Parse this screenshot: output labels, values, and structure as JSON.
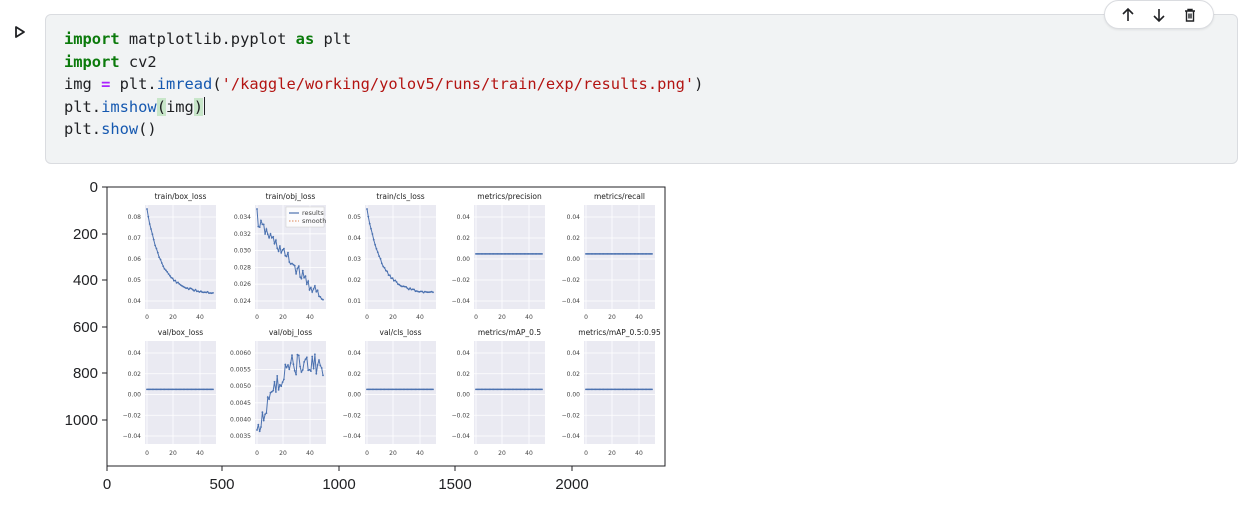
{
  "toolbar": {
    "icons": [
      "arrow-up-icon",
      "arrow-down-icon",
      "trash-icon"
    ]
  },
  "code_cell": {
    "lines": [
      [
        {
          "t": "import",
          "c": "kw"
        },
        {
          "t": " matplotlib.pyplot ",
          "c": ""
        },
        {
          "t": "as",
          "c": "kw"
        },
        {
          "t": " plt",
          "c": ""
        }
      ],
      [
        {
          "t": "import",
          "c": "kw"
        },
        {
          "t": " cv2",
          "c": ""
        }
      ],
      [
        {
          "t": "img ",
          "c": ""
        },
        {
          "t": "=",
          "c": "op"
        },
        {
          "t": " plt.",
          "c": ""
        },
        {
          "t": "imread",
          "c": "fn"
        },
        {
          "t": "(",
          "c": ""
        },
        {
          "t": "'/kaggle/working/yolov5/runs/train/exp/results.png'",
          "c": "str"
        },
        {
          "t": ")",
          "c": ""
        }
      ],
      [
        {
          "t": "plt.",
          "c": ""
        },
        {
          "t": "imshow",
          "c": "fn"
        },
        {
          "t": "(",
          "c": "paren-hl"
        },
        {
          "t": "img",
          "c": ""
        },
        {
          "t": ")",
          "c": "paren-hl"
        },
        {
          "t": "",
          "c": "cursor"
        }
      ],
      [
        {
          "t": "plt.",
          "c": ""
        },
        {
          "t": "show",
          "c": "fn"
        },
        {
          "t": "()",
          "c": ""
        }
      ]
    ]
  },
  "output": {
    "y_ticks": [
      "0",
      "200",
      "400",
      "600",
      "800",
      "1000"
    ],
    "x_ticks": [
      "0",
      "500",
      "1000",
      "1500",
      "2000"
    ],
    "colors": {
      "line": "#4c72b0",
      "panel_bg": "#eaeaf2",
      "smooth": "#dd8452"
    },
    "legend": [
      "results",
      "smooth"
    ],
    "panels": [
      {
        "title": "train/box_loss",
        "yticks": [
          "0.08",
          "0.07",
          "0.06",
          "0.05",
          "0.04"
        ],
        "kind": "decay"
      },
      {
        "title": "train/obj_loss",
        "yticks": [
          "0.034",
          "0.032",
          "0.030",
          "0.028",
          "0.026",
          "0.024"
        ],
        "kind": "noisy_decay"
      },
      {
        "title": "train/cls_loss",
        "yticks": [
          "0.05",
          "0.04",
          "0.03",
          "0.02",
          "0.01"
        ],
        "kind": "decay"
      },
      {
        "title": "metrics/precision",
        "yticks": [
          "0.04",
          "0.02",
          "0.00",
          "−0.02",
          "−0.04"
        ],
        "kind": "flat"
      },
      {
        "title": "metrics/recall",
        "yticks": [
          "0.04",
          "0.02",
          "0.00",
          "−0.02",
          "−0.04"
        ],
        "kind": "flat"
      },
      {
        "title": "val/box_loss",
        "yticks": [
          "0.04",
          "0.02",
          "0.00",
          "−0.02",
          "−0.04"
        ],
        "kind": "flat"
      },
      {
        "title": "val/obj_loss",
        "yticks": [
          "0.0060",
          "0.0055",
          "0.0050",
          "0.0045",
          "0.0040",
          "0.0035"
        ],
        "kind": "noisy_rise"
      },
      {
        "title": "val/cls_loss",
        "yticks": [
          "0.04",
          "0.02",
          "0.00",
          "−0.02",
          "−0.04"
        ],
        "kind": "flat"
      },
      {
        "title": "metrics/mAP_0.5",
        "yticks": [
          "0.04",
          "0.02",
          "0.00",
          "−0.02",
          "−0.04"
        ],
        "kind": "flat"
      },
      {
        "title": "metrics/mAP_0.5:0.95",
        "yticks": [
          "0.04",
          "0.02",
          "0.00",
          "−0.02",
          "−0.04"
        ],
        "kind": "flat"
      }
    ],
    "panel_xticks": [
      "0",
      "20",
      "40"
    ]
  }
}
